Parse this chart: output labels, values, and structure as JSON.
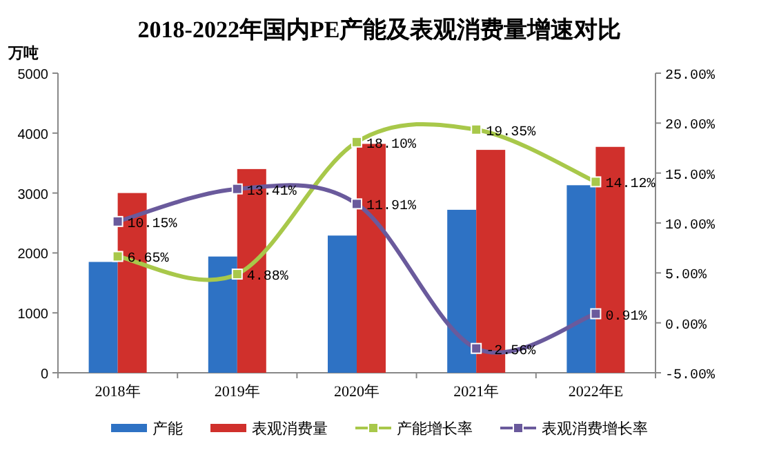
{
  "chart_data": {
    "type": "bar",
    "title": "2018-2022年国内PE产能及表观消费量增速对比",
    "ylabel": "万吨",
    "categories": [
      "2018年",
      "2019年",
      "2020年",
      "2021年",
      "2022年E"
    ],
    "ylim": [
      0,
      5000
    ],
    "yticks": [
      0,
      1000,
      2000,
      3000,
      4000,
      5000
    ],
    "y2lim": [
      -5,
      25
    ],
    "y2ticks": [
      {
        "value": -5,
        "label": "-5.00%"
      },
      {
        "value": 0,
        "label": "0.00%"
      },
      {
        "value": 5,
        "label": "5.00%"
      },
      {
        "value": 10,
        "label": "10.00%"
      },
      {
        "value": 15,
        "label": "15.00%"
      },
      {
        "value": 20,
        "label": "20.00%"
      },
      {
        "value": 25,
        "label": "25.00%"
      }
    ],
    "grid": false,
    "legend": "bottom",
    "series": [
      {
        "name": "产能",
        "color": "#2e72c4",
        "values": [
          1850,
          1940,
          2290,
          2720,
          3130
        ]
      },
      {
        "name": "表观消费量",
        "color": "#d0302c",
        "values": [
          3000,
          3400,
          3820,
          3720,
          3770
        ]
      },
      {
        "name": "产能增长率",
        "type": "line",
        "axis": "y2",
        "color": "#a8c84a",
        "marker": "square",
        "values": [
          6.65,
          4.88,
          18.1,
          19.35,
          14.12
        ],
        "value_labels": [
          "6.65%",
          "4.88%",
          "18.10%",
          "19.35%",
          "14.12%"
        ]
      },
      {
        "name": "表观消费增长率",
        "type": "line",
        "axis": "y2",
        "color": "#6a5a9c",
        "marker": "square",
        "values": [
          10.15,
          13.41,
          11.91,
          -2.56,
          0.91
        ],
        "value_labels": [
          "10.15%",
          "13.41%",
          "11.91%",
          "-2.56%",
          "0.91%"
        ]
      }
    ]
  }
}
